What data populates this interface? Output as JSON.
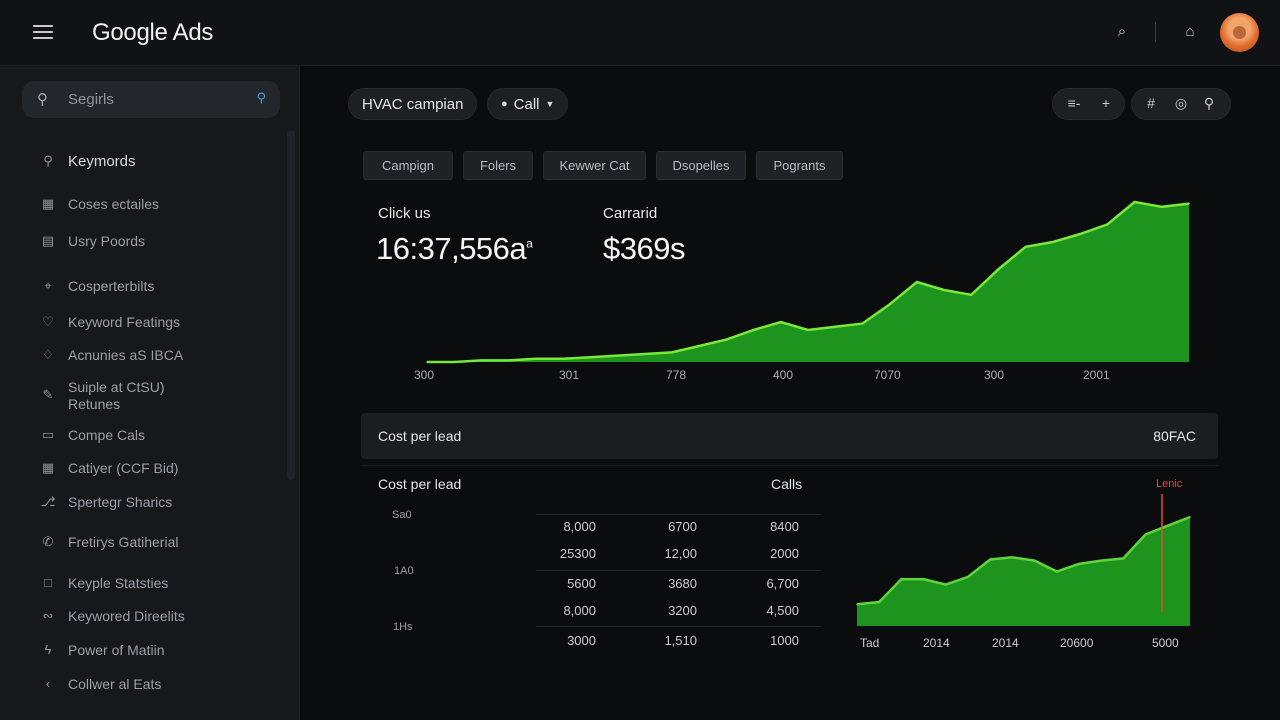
{
  "app": {
    "title": "Google Ads"
  },
  "sidebar": {
    "search_placeholder": "Segirls",
    "items": [
      {
        "label": "Keymords",
        "icon": "search-icon"
      },
      {
        "label": "Coses ectailes",
        "icon": "calendar-icon"
      },
      {
        "label": "Usry Poords",
        "icon": "grid-icon"
      },
      {
        "label": "Cosperterbilts",
        "icon": "location-icon"
      },
      {
        "label": "Keyword Featings",
        "icon": "pin-icon"
      },
      {
        "label": "Acnunies aS IBCA",
        "icon": "shield-icon"
      },
      {
        "label": "Suiple at CtSU)",
        "label2": "Retunes",
        "icon": "pencil-icon"
      },
      {
        "label": "Compe Cals",
        "icon": "chat-icon"
      },
      {
        "label": "Catiyer (CCF Bid)",
        "icon": "table-icon"
      },
      {
        "label": "Spertegr Sharics",
        "icon": "share-icon"
      },
      {
        "label": "Fretirys Gatiherial",
        "icon": "phone-icon"
      },
      {
        "label": "Keyple Statsties",
        "icon": "square-icon"
      },
      {
        "label": "Keywored Direelits",
        "icon": "link-icon"
      },
      {
        "label": "Power of Matiin",
        "icon": "bolt-icon"
      },
      {
        "label": "Collwer al Eats",
        "icon": "chevron-left-icon"
      }
    ]
  },
  "header": {
    "campaign_chip": "HVAC campian",
    "call_chip": "Call",
    "group1": [
      "≡-",
      "+"
    ],
    "group2": [
      "#",
      "◎",
      "⚲"
    ]
  },
  "tabs": [
    "Campign",
    "Folers",
    "Kewwer Cat",
    "Dsopelles",
    "Pogrants"
  ],
  "metrics": [
    {
      "label": "Click us",
      "value": "16:37,556a",
      "sup": "a"
    },
    {
      "label": "Carrarid",
      "value": "$369s"
    }
  ],
  "chart_data": [
    {
      "type": "area",
      "x_tick_labels": [
        "300",
        "301",
        "778",
        "400",
        "7070",
        "300",
        "2001"
      ],
      "values": [
        0.0,
        0.0,
        0.01,
        0.01,
        0.02,
        0.02,
        0.03,
        0.04,
        0.05,
        0.06,
        0.1,
        0.14,
        0.2,
        0.25,
        0.2,
        0.22,
        0.24,
        0.36,
        0.5,
        0.45,
        0.42,
        0.58,
        0.72,
        0.75,
        0.8,
        0.86,
        1.0,
        0.97,
        0.99
      ],
      "color": "#1fa11f",
      "stroke": "#7ae83a"
    },
    {
      "type": "table",
      "title": "Cost per lead",
      "row_labels": [
        "Sa0",
        "1A0",
        "1Hs"
      ],
      "columns": [
        [
          "8,000",
          "25300",
          "5600",
          "8,000",
          "3000"
        ],
        [
          "6700",
          "12,00",
          "3680",
          "3200",
          "1,510"
        ],
        [
          "8400",
          "2000",
          "6,700",
          "4,500",
          "1000"
        ]
      ]
    },
    {
      "type": "area",
      "title": "Calls",
      "annotation": "Lenic",
      "x_tick_labels": [
        "Tad",
        "2014",
        "2014",
        "20600",
        "5000"
      ],
      "values": [
        0.2,
        0.22,
        0.43,
        0.43,
        0.38,
        0.45,
        0.61,
        0.63,
        0.6,
        0.5,
        0.57,
        0.6,
        0.62,
        0.84,
        0.92,
        1.0
      ],
      "color": "#1fa11f",
      "stroke": "#5fd43a",
      "annotation_color": "#e8483a"
    }
  ],
  "summary_bar": {
    "label": "Cost per lead",
    "value": "80FAC"
  }
}
